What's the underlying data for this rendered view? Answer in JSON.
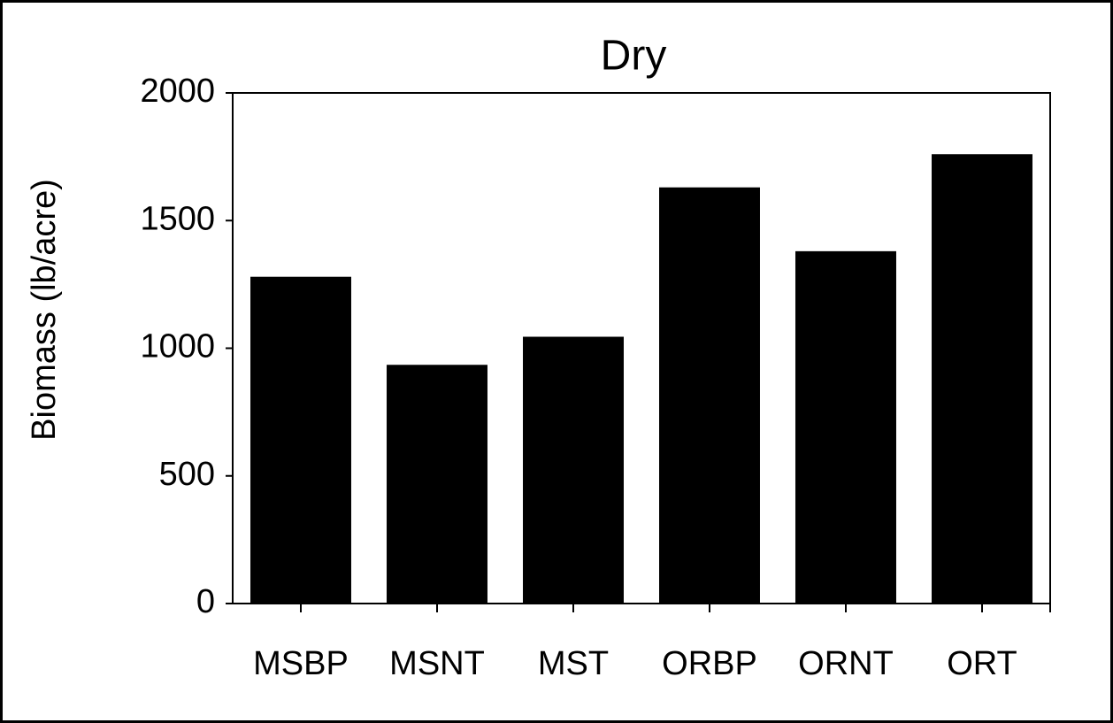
{
  "chart_data": {
    "type": "bar",
    "title": "Dry",
    "y_label": "Biomass (lb/acre)",
    "categories": [
      "MSBP",
      "MSNT",
      "MST",
      "ORBP",
      "ORNT",
      "ORT"
    ],
    "values": [
      1280,
      935,
      1045,
      1630,
      1380,
      1760
    ],
    "color": "#000000",
    "ylim": [
      0,
      2000
    ],
    "yticks": [
      0,
      500,
      1000,
      1500,
      2000
    ],
    "grid": false
  }
}
